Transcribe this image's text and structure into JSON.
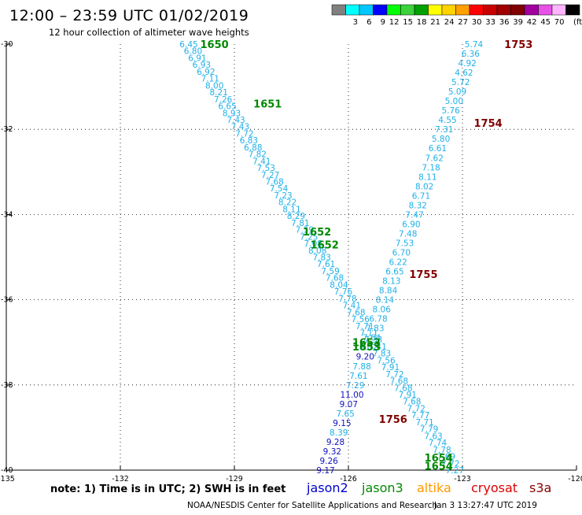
{
  "header": {
    "title": "12:00 – 23:59 UTC 01/02/2019",
    "subtitle": "12 hour collection of altimeter wave heights"
  },
  "legend": {
    "unit": "(ft)",
    "bins": [
      {
        "label": "",
        "color": "#808080"
      },
      {
        "label": "3",
        "color": "#00ffff"
      },
      {
        "label": "6",
        "color": "#00c8ff"
      },
      {
        "label": "9",
        "color": "#0000ff"
      },
      {
        "label": "12",
        "color": "#00ff00"
      },
      {
        "label": "15",
        "color": "#3cd23c"
      },
      {
        "label": "18",
        "color": "#00a000"
      },
      {
        "label": "21",
        "color": "#ffff00"
      },
      {
        "label": "24",
        "color": "#ffd200"
      },
      {
        "label": "27",
        "color": "#ffa000"
      },
      {
        "label": "30",
        "color": "#ff0000"
      },
      {
        "label": "33",
        "color": "#c80000"
      },
      {
        "label": "36",
        "color": "#a00000"
      },
      {
        "label": "39",
        "color": "#800000"
      },
      {
        "label": "42",
        "color": "#a000a0"
      },
      {
        "label": "45",
        "color": "#e650e6"
      },
      {
        "label": "70",
        "color": "#ffb4ff"
      },
      {
        "label": "",
        "color": "#000000"
      }
    ]
  },
  "footer": {
    "note": "note:  1) Time is in UTC;  2) SWH is in feet",
    "credit": "NOAA/NESDIS Center for Satellite Applications and Research",
    "generated": "Jan  3 13:27:47 UTC 2019",
    "satellites": [
      {
        "name": "jason2",
        "color": "#0000cc"
      },
      {
        "name": "jason3",
        "color": "#008800"
      },
      {
        "name": "altika",
        "color": "#ff9900"
      },
      {
        "name": "cryosat",
        "color": "#dd0000"
      },
      {
        "name": "s3a",
        "color": "#880000"
      }
    ]
  },
  "chart_data": {
    "type": "scatter",
    "xaxis": {
      "min": -135,
      "max": -120,
      "ticks": [
        -135,
        -132,
        -129,
        -126,
        -123,
        -120
      ]
    },
    "yaxis": {
      "min": -40,
      "max": -30,
      "ticks": [
        -30,
        -32,
        -34,
        -36,
        -38,
        -40
      ]
    },
    "grid": "dotted",
    "colors": {
      "light": "#1fb0e8",
      "blue": "#1010c0",
      "green": "#008800",
      "darkred": "#800000"
    },
    "tracks": [
      {
        "satellite": "jason3",
        "start": [
          -130.2,
          -30.0
        ],
        "end": [
          -123.2,
          -40.0
        ],
        "values": [
          "6.45",
          "6.80",
          "6.91",
          "6.93",
          "6.92",
          "7.11",
          "8.00",
          "8.21",
          "7.26",
          "6.65",
          "8.93",
          "7.43",
          "7.43",
          "7.72",
          "6.83",
          "6.88",
          "7.82",
          "7.41",
          "7.53",
          "7.27",
          "7.68",
          "7.54",
          "7.23",
          "8.22",
          "8.11",
          "8.29",
          "7.81",
          "7.59",
          "7.25",
          "7.08",
          "8.08",
          "7.83",
          "7.61",
          "7.59",
          "7.68",
          "8.04",
          "7.76",
          "7.78",
          "7.41",
          "7.68",
          "7.56",
          "7.71",
          "7.11",
          "7.33",
          "7.41",
          "7.83",
          "7.56",
          "7.91",
          "7.72",
          "7.68",
          "7.68",
          "7.91",
          "7.68",
          "7.72",
          "7.77",
          "7.71",
          "7.79",
          "7.63",
          "7.74",
          "7.78",
          "7.69",
          "7.72",
          "7.27"
        ]
      },
      {
        "satellite": "jason2",
        "start": [
          -122.7,
          -30.0
        ],
        "end": [
          -126.6,
          -40.0
        ],
        "values": [
          "5.74",
          "6.36",
          "4.92",
          "4.62",
          "5.72",
          "5.09",
          "5.00",
          "5.76",
          "4.55",
          "7.31",
          "5.80",
          "6.61",
          "7.62",
          "7.18",
          "8.11",
          "8.02",
          "6.71",
          "8.32",
          "7.47",
          "6.90",
          "7.48",
          "7.53",
          "6.70",
          "6.22",
          "6.65",
          "8.13",
          "8.84",
          "8.14",
          "8.06",
          "6.78",
          "7.83",
          "7.64",
          "8.02",
          "9.20",
          "7.88",
          "7.61",
          "7.29",
          "11.00",
          "9.07",
          "7.65",
          "9.15",
          "8.39",
          "9.28",
          "9.32",
          "9.26",
          "9.17"
        ]
      }
    ],
    "time_labels": [
      {
        "text": "1650",
        "x": -129.9,
        "y": -30.0,
        "color": "green"
      },
      {
        "text": "1651",
        "x": -128.5,
        "y": -31.4,
        "color": "green"
      },
      {
        "text": "1652",
        "x": -127.2,
        "y": -34.4,
        "color": "green"
      },
      {
        "text": "1652",
        "x": -127.0,
        "y": -34.7,
        "color": "green"
      },
      {
        "text": "1653",
        "x": -125.9,
        "y": -37.0,
        "color": "green"
      },
      {
        "text": "1653",
        "x": -125.9,
        "y": -37.1,
        "color": "green"
      },
      {
        "text": "1654",
        "x": -124.0,
        "y": -39.7,
        "color": "green"
      },
      {
        "text": "1654",
        "x": -124.0,
        "y": -39.9,
        "color": "green"
      },
      {
        "text": "1753",
        "x": -121.9,
        "y": -30.0,
        "color": "darkred"
      },
      {
        "text": "1754",
        "x": -122.7,
        "y": -31.85,
        "color": "darkred"
      },
      {
        "text": "1755",
        "x": -124.4,
        "y": -35.4,
        "color": "darkred"
      },
      {
        "text": "1756",
        "x": -125.2,
        "y": -38.8,
        "color": "darkred"
      }
    ]
  }
}
